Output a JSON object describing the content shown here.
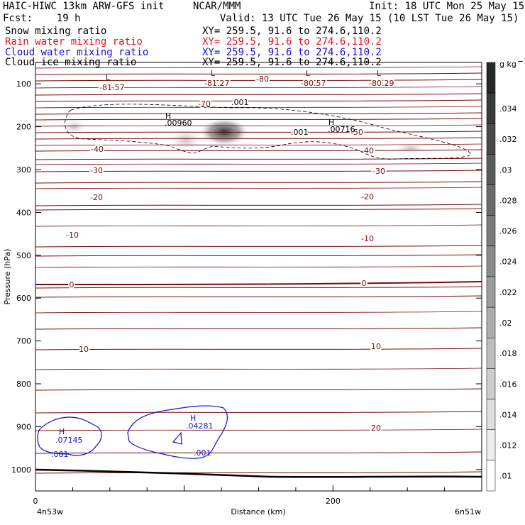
{
  "header": {
    "model": "HAIC-HIWC 13km ARW-GFS init",
    "org": "NCAR/MMM",
    "init": "Init: 18 UTC Mon 25 May 15",
    "fcst": "Fcst:    19 h",
    "valid": "Valid: 13 UTC Tue 26 May 15 (10 LST Tue 26 May 15)"
  },
  "fields": [
    {
      "name": "Snow mixing ratio",
      "xy": "XY= 259.5, 91.6 to 274.6,110.2",
      "color": "#000000"
    },
    {
      "name": "Rain water mixing ratio",
      "xy": "XY= 259.5, 91.6 to 274.6,110.2",
      "color": "#e8101e"
    },
    {
      "name": "Cloud water mixing ratio",
      "xy": "XY= 259.5, 91.6 to 274.6,110.2",
      "color": "#1010d8"
    },
    {
      "name": "Cloud ice mixing ratio",
      "xy": "XY= 259.5, 91.6 to 274.6,110.2",
      "color": "#000000"
    }
  ],
  "chart_data": {
    "type": "cross-section",
    "xlabel": "Distance (km)",
    "ylabel": "Pressure (hPa)",
    "x_ticks": [
      "0",
      "200"
    ],
    "x_range": [
      0,
      300
    ],
    "y_ticks": [
      "100",
      "200",
      "300",
      "400",
      "500",
      "600",
      "700",
      "800",
      "900",
      "1000"
    ],
    "y_range_hpa": [
      50,
      1050
    ],
    "x_end_labels": {
      "left": "4n53w",
      "right": "6n51w"
    },
    "colorbar": {
      "unit_label": "g kg",
      "unit_exp": "−1",
      "tick_labels": [
        ".034",
        ".032",
        ".03",
        ".028",
        ".026",
        ".024",
        ".022",
        ".02",
        ".018",
        ".016",
        ".014",
        ".012",
        ".01"
      ],
      "scale": "grayscale"
    },
    "temperature_contours": {
      "color": "#7a0a0a",
      "levels_labeled": [
        "-80",
        "-70",
        "-50",
        "-40",
        "-30",
        "-20",
        "-10",
        "0",
        "10",
        "20"
      ]
    },
    "extrema": [
      {
        "type": "L",
        "value": "-81.57"
      },
      {
        "type": "L",
        "value": "-81.27"
      },
      {
        "type": "L",
        "value": "-80.57"
      },
      {
        "type": "L",
        "value": "-80.29"
      },
      {
        "type": "H",
        "value": ".00960"
      },
      {
        "type": "H",
        "value": ".00716"
      },
      {
        "type": "H",
        "value": ".04281"
      },
      {
        "type": "H",
        "value": ".07145"
      }
    ],
    "dashed_contour_label": ".001",
    "cloud_water_contour_label": ".001"
  }
}
